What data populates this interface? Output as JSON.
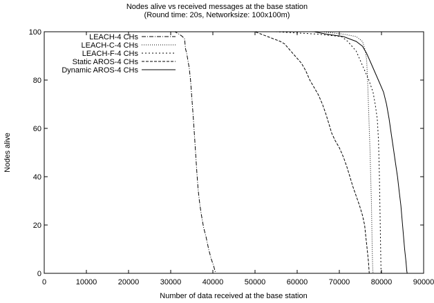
{
  "chart_data": {
    "type": "line",
    "title": "Nodes alive vs received messages at the base station",
    "subtitle": "(Round time: 20s, Networksize: 100x100m)",
    "xlabel": "Number of data received at the base station",
    "ylabel": "Nodes alive",
    "xlim": [
      0,
      90000
    ],
    "ylim": [
      0,
      100
    ],
    "x_ticks": [
      "0",
      "10000",
      "20000",
      "30000",
      "40000",
      "50000",
      "60000",
      "70000",
      "80000",
      "90000"
    ],
    "y_ticks": [
      "0",
      "20",
      "40",
      "60",
      "80",
      "100"
    ],
    "grid": false,
    "legend_position": "top-left",
    "series": [
      {
        "name": "LEACH-4 CHs",
        "dash": "6,2,1,2",
        "points": [
          [
            0,
            100
          ],
          [
            31000,
            100
          ],
          [
            32000,
            99
          ],
          [
            32800,
            98
          ],
          [
            33300,
            97
          ],
          [
            33500,
            93
          ],
          [
            33800,
            91
          ],
          [
            34100,
            88
          ],
          [
            34400,
            85
          ],
          [
            34700,
            80
          ],
          [
            35000,
            73
          ],
          [
            35300,
            66
          ],
          [
            35600,
            58
          ],
          [
            35900,
            50
          ],
          [
            36200,
            42
          ],
          [
            36500,
            35
          ],
          [
            36800,
            30
          ],
          [
            37200,
            25
          ],
          [
            37800,
            19
          ],
          [
            38400,
            15
          ],
          [
            39000,
            10
          ],
          [
            39600,
            6
          ],
          [
            40200,
            3
          ],
          [
            40500,
            1
          ],
          [
            40700,
            0
          ]
        ]
      },
      {
        "name": "LEACH-C-4 CHs",
        "dash": "1,2",
        "points": [
          [
            0,
            100
          ],
          [
            58000,
            100
          ],
          [
            66000,
            100
          ],
          [
            71000,
            99
          ],
          [
            74000,
            98
          ],
          [
            75500,
            96
          ],
          [
            76200,
            92
          ],
          [
            76500,
            88
          ],
          [
            76700,
            80
          ],
          [
            76900,
            70
          ],
          [
            77100,
            60
          ],
          [
            77300,
            50
          ],
          [
            77450,
            40
          ],
          [
            77600,
            30
          ],
          [
            77700,
            20
          ],
          [
            77800,
            10
          ],
          [
            77900,
            3
          ],
          [
            78000,
            0
          ]
        ]
      },
      {
        "name": "LEACH-F-4 CHs",
        "dash": "2,3",
        "points": [
          [
            0,
            100
          ],
          [
            55000,
            100
          ],
          [
            65000,
            99
          ],
          [
            70500,
            98
          ],
          [
            72000,
            96
          ],
          [
            73000,
            94
          ],
          [
            74000,
            92
          ],
          [
            75000,
            88
          ],
          [
            76000,
            84
          ],
          [
            77000,
            80
          ],
          [
            78000,
            75
          ],
          [
            78500,
            70
          ],
          [
            79000,
            64
          ],
          [
            79300,
            55
          ],
          [
            79500,
            40
          ],
          [
            79700,
            20
          ],
          [
            79800,
            10
          ],
          [
            79900,
            0
          ]
        ]
      },
      {
        "name": "Static AROS-4 CHs",
        "dash": "4,2",
        "points": [
          [
            0,
            100
          ],
          [
            50000,
            100
          ],
          [
            51500,
            99
          ],
          [
            53000,
            98
          ],
          [
            54500,
            97
          ],
          [
            56000,
            96
          ],
          [
            57000,
            95
          ],
          [
            58000,
            93
          ],
          [
            59500,
            90
          ],
          [
            61000,
            87
          ],
          [
            62000,
            84
          ],
          [
            63000,
            80
          ],
          [
            64000,
            77
          ],
          [
            65000,
            74
          ],
          [
            66000,
            70
          ],
          [
            66800,
            66
          ],
          [
            67500,
            62
          ],
          [
            68200,
            58
          ],
          [
            69000,
            55
          ],
          [
            70000,
            52
          ],
          [
            71000,
            48
          ],
          [
            71800,
            44
          ],
          [
            72500,
            40
          ],
          [
            73200,
            36
          ],
          [
            74000,
            32
          ],
          [
            74800,
            28
          ],
          [
            75500,
            24
          ],
          [
            76000,
            20
          ],
          [
            76300,
            15
          ],
          [
            76600,
            10
          ],
          [
            76900,
            5
          ],
          [
            77100,
            0
          ]
        ]
      },
      {
        "name": "Dynamic AROS-4 CHs",
        "dash": "",
        "points": [
          [
            0,
            100
          ],
          [
            64000,
            100
          ],
          [
            67000,
            99
          ],
          [
            71000,
            98
          ],
          [
            74000,
            96
          ],
          [
            75500,
            94
          ],
          [
            76500,
            91
          ],
          [
            77500,
            87
          ],
          [
            78500,
            83
          ],
          [
            79500,
            79
          ],
          [
            80500,
            75
          ],
          [
            81200,
            70
          ],
          [
            81800,
            64
          ],
          [
            82300,
            58
          ],
          [
            82800,
            52
          ],
          [
            83300,
            46
          ],
          [
            83800,
            40
          ],
          [
            84200,
            34
          ],
          [
            84600,
            28
          ],
          [
            84900,
            22
          ],
          [
            85200,
            16
          ],
          [
            85500,
            10
          ],
          [
            85800,
            5
          ],
          [
            86000,
            1
          ],
          [
            86100,
            0
          ]
        ]
      }
    ]
  }
}
